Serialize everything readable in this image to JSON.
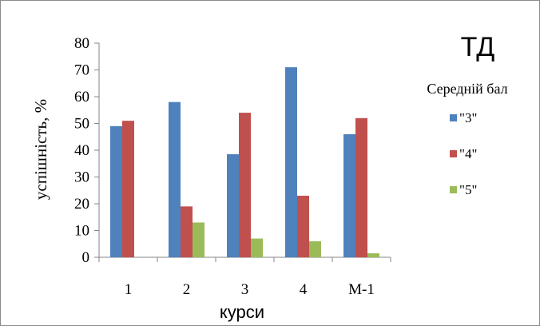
{
  "chart_data": {
    "type": "bar",
    "title": "ТД",
    "xlabel": "курси",
    "ylabel": "успішність,  %",
    "categories": [
      "1",
      "2",
      "3",
      "4",
      "М-1"
    ],
    "ylim": [
      0,
      80
    ],
    "yticks": [
      0,
      10,
      20,
      30,
      40,
      50,
      60,
      70,
      80
    ],
    "legend_title": "Середній бал",
    "legend_position": "right",
    "grid": false,
    "series": [
      {
        "name": "\"3\"",
        "color": "#4f81bd",
        "values": [
          49,
          58,
          38.5,
          71,
          46
        ]
      },
      {
        "name": "\"4\"",
        "color": "#c0504d",
        "values": [
          51,
          19,
          54,
          23,
          52
        ]
      },
      {
        "name": "\"5\"",
        "color": "#9bbb59",
        "values": [
          0,
          13,
          7,
          6,
          1.5
        ]
      }
    ]
  }
}
